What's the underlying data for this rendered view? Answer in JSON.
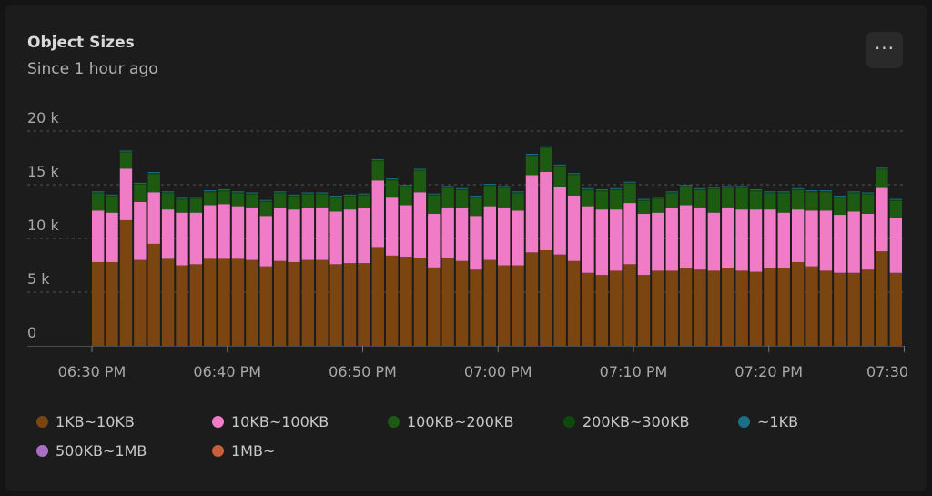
{
  "card": {
    "title": "Object Sizes",
    "subtitle": "Since 1 hour ago",
    "menu_label": "···"
  },
  "colors": {
    "background": "#1c1c1c",
    "grid": "#555555",
    "axis_text": "#a8a8a8"
  },
  "chart_data": {
    "type": "bar",
    "stacked": true,
    "x_tick_labels": [
      "06:30 PM",
      "06:40 PM",
      "06:50 PM",
      "07:00 PM",
      "07:10 PM",
      "07:20 PM",
      "07:30"
    ],
    "y_tick_labels": [
      "0",
      "5 k",
      "10 k",
      "15 k",
      "20 k"
    ],
    "y_ticks": [
      0,
      5000,
      10000,
      15000,
      20000
    ],
    "ylim": [
      0,
      20000
    ],
    "grid": "horizontal-dashed",
    "legend_position": "bottom",
    "series": [
      {
        "name": "1KB~10KB",
        "color": "#7a4510",
        "values": [
          7800,
          7800,
          11700,
          8000,
          9500,
          8100,
          7500,
          7600,
          8100,
          8100,
          8100,
          8000,
          7400,
          7900,
          7800,
          8000,
          8000,
          7600,
          7700,
          7700,
          9200,
          8400,
          8300,
          8200,
          7300,
          8200,
          7900,
          7100,
          8000,
          7500,
          7500,
          8700,
          8900,
          8500,
          7900,
          6800,
          6600,
          7000,
          7600,
          6600,
          7000,
          7000,
          7200,
          7100,
          7000,
          7200,
          7000,
          6900,
          7200,
          7200,
          7800,
          7400,
          7000,
          6800,
          6800,
          7100,
          8800,
          6800
        ]
      },
      {
        "name": "10KB~100KB",
        "color": "#f07cc8",
        "values": [
          4800,
          4600,
          4800,
          5400,
          4800,
          4600,
          4900,
          4800,
          5000,
          5100,
          4900,
          4900,
          4700,
          4900,
          4900,
          4800,
          4900,
          4900,
          5000,
          5100,
          6200,
          5400,
          4800,
          6100,
          5000,
          4700,
          4900,
          5000,
          5000,
          5400,
          5100,
          7200,
          7300,
          6300,
          6100,
          6200,
          6100,
          5700,
          5700,
          5700,
          5400,
          5800,
          5900,
          5800,
          5400,
          5700,
          5700,
          5800,
          5500,
          5200,
          4900,
          5200,
          5600,
          5400,
          5700,
          5200,
          5900,
          5100
        ]
      },
      {
        "name": "100KB~200KB",
        "color": "#1d5a12",
        "values": [
          1600,
          1500,
          1500,
          1600,
          1700,
          1500,
          1200,
          1300,
          1200,
          1200,
          1200,
          1200,
          1300,
          1400,
          1200,
          1300,
          1200,
          1300,
          1200,
          1200,
          1800,
          1600,
          1700,
          2000,
          1700,
          1800,
          1700,
          1700,
          1900,
          1800,
          1600,
          1800,
          2200,
          1900,
          1900,
          1500,
          1700,
          1800,
          1800,
          1200,
          1300,
          1400,
          1700,
          1600,
          2200,
          1800,
          2000,
          1700,
          1500,
          1800,
          1800,
          1700,
          1700,
          1600,
          1700,
          1800,
          1700,
          1600
        ]
      },
      {
        "name": "200KB~300KB",
        "color": "#0e4a0e",
        "values": [
          100,
          100,
          100,
          100,
          100,
          100,
          100,
          100,
          100,
          100,
          100,
          100,
          100,
          100,
          100,
          100,
          100,
          100,
          100,
          100,
          100,
          100,
          100,
          100,
          100,
          100,
          100,
          100,
          100,
          100,
          100,
          100,
          100,
          100,
          100,
          100,
          100,
          100,
          100,
          100,
          100,
          100,
          100,
          100,
          100,
          100,
          100,
          100,
          100,
          100,
          100,
          100,
          100,
          100,
          100,
          100,
          100,
          100
        ]
      },
      {
        "name": "~1KB",
        "color": "#1a6f88",
        "values": [
          80,
          80,
          80,
          80,
          80,
          80,
          80,
          80,
          80,
          80,
          80,
          80,
          80,
          80,
          80,
          80,
          80,
          80,
          80,
          80,
          80,
          80,
          80,
          80,
          80,
          80,
          80,
          80,
          80,
          80,
          80,
          80,
          80,
          80,
          80,
          80,
          80,
          80,
          80,
          80,
          80,
          80,
          80,
          80,
          80,
          80,
          80,
          80,
          80,
          80,
          80,
          80,
          80,
          80,
          80,
          80,
          80,
          80
        ]
      },
      {
        "name": "500KB~1MB",
        "color": "#a86fc4",
        "values": []
      },
      {
        "name": "1MB~",
        "color": "#c4603a",
        "values": []
      }
    ]
  }
}
